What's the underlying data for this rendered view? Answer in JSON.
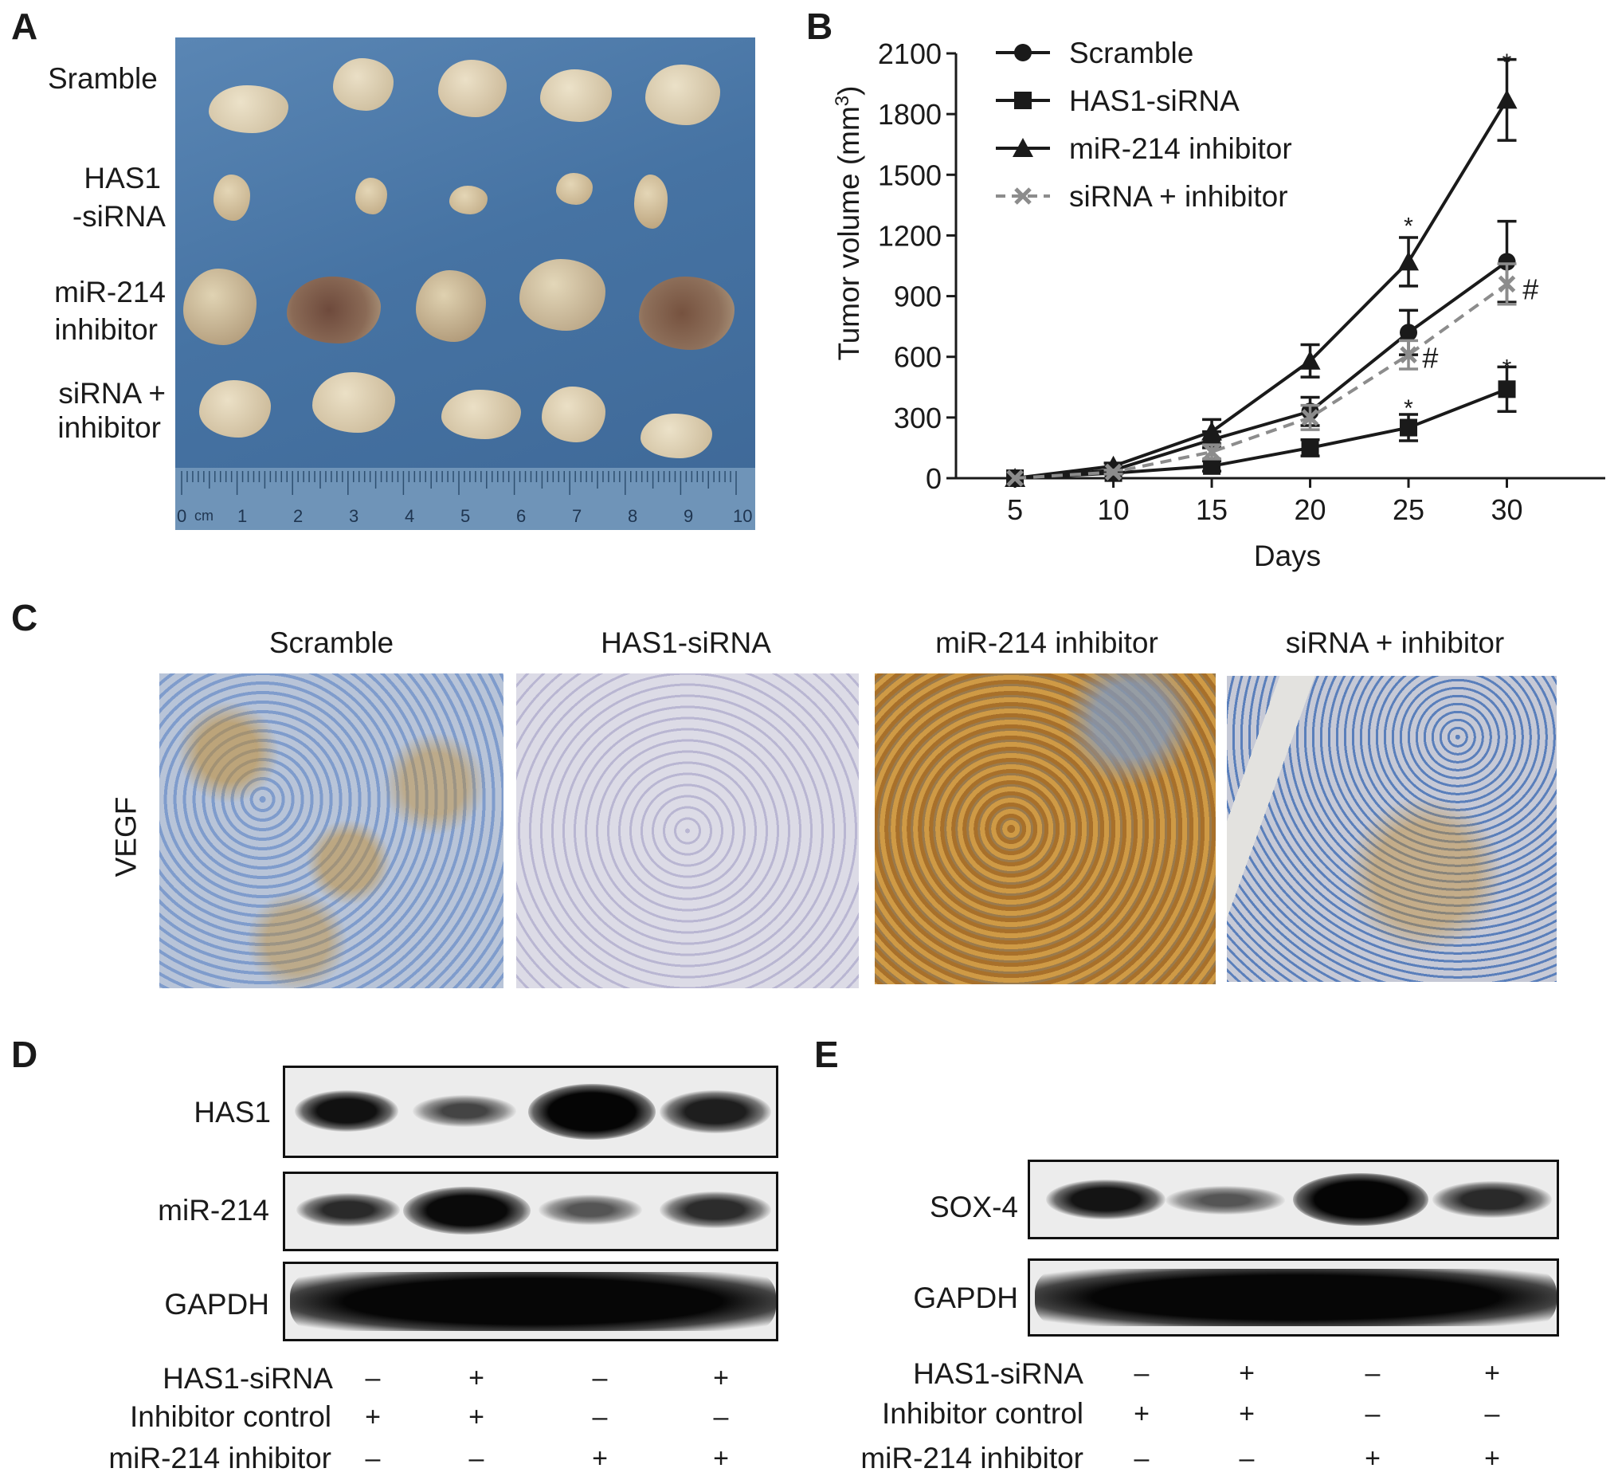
{
  "panels": {
    "a": "A",
    "b": "B",
    "c": "C",
    "d": "D",
    "e": "E"
  },
  "panel_a": {
    "rows": [
      {
        "label": "Sramble"
      },
      {
        "label_line1": "HAS1",
        "label_line2": "-siRNA"
      },
      {
        "label_line1": "miR-214",
        "label_line2": "inhibitor"
      },
      {
        "label_line1": "siRNA +",
        "label_line2": "inhibitor"
      }
    ],
    "ruler": {
      "unit": "cm",
      "ticks": [
        "0",
        "1",
        "2",
        "3",
        "4",
        "5",
        "6",
        "7",
        "8",
        "9",
        "10"
      ]
    },
    "colors": {
      "background": "#4a78a8",
      "tissue": "#d8cdb4"
    }
  },
  "chart_data": {
    "type": "line",
    "xlabel": "Days",
    "ylabel": "Tumor volume (mm³)",
    "ylabel_main": "Tumor volume (mm",
    "ylabel_sup": "3",
    "ylabel_close": ")",
    "x": [
      5,
      10,
      15,
      20,
      25,
      30
    ],
    "xlim": [
      2,
      35
    ],
    "ylim": [
      0,
      2100
    ],
    "yticks": [
      0,
      300,
      600,
      900,
      1200,
      1500,
      1800,
      2100
    ],
    "xticks": [
      5,
      10,
      15,
      20,
      25,
      30
    ],
    "grid": false,
    "legend_position": "top-left",
    "series": [
      {
        "name": "Scramble",
        "marker": "circle",
        "dash": false,
        "color": "#1a1a1a",
        "values": [
          0,
          40,
          190,
          330,
          720,
          1070
        ],
        "errors": [
          0,
          10,
          40,
          70,
          110,
          200
        ]
      },
      {
        "name": "HAS1-siRNA",
        "marker": "square",
        "dash": false,
        "color": "#1a1a1a",
        "values": [
          0,
          25,
          60,
          150,
          250,
          440
        ],
        "errors": [
          0,
          5,
          25,
          40,
          65,
          110
        ]
      },
      {
        "name": "miR-214 inhibitor",
        "marker": "triangle",
        "dash": false,
        "color": "#1a1a1a",
        "values": [
          0,
          60,
          230,
          580,
          1070,
          1870
        ],
        "errors": [
          0,
          15,
          60,
          80,
          120,
          200
        ]
      },
      {
        "name": "siRNA + inhibitor",
        "marker": "x",
        "dash": true,
        "color": "#8c8c8c",
        "values": [
          0,
          30,
          130,
          300,
          610,
          960
        ],
        "errors": [
          0,
          10,
          35,
          60,
          70,
          100
        ]
      }
    ],
    "annotations": [
      {
        "text": "*",
        "x": 25,
        "y": 1270
      },
      {
        "text": "*",
        "x": 30,
        "y": 2080
      },
      {
        "text": "*",
        "x": 25,
        "y": 370
      },
      {
        "text": "*",
        "x": 30,
        "y": 570
      },
      {
        "text": "#",
        "x": 25.7,
        "y": 600
      },
      {
        "text": "#",
        "x": 30.8,
        "y": 940
      }
    ]
  },
  "panel_c": {
    "ylabel": "VEGF",
    "titles": [
      "Scramble",
      "HAS1-siRNA",
      "miR-214 inhibitor",
      "siRNA + inhibitor"
    ],
    "colors": {
      "nuclei": "#5b7fb5",
      "stain": "#c08a2c",
      "pale": "#c9c9d6"
    }
  },
  "panel_d": {
    "blots": [
      "HAS1",
      "miR-214",
      "GAPDH"
    ],
    "conditions": [
      {
        "label": "HAS1-siRNA",
        "signs": [
          "–",
          "+",
          "–",
          "+"
        ]
      },
      {
        "label": "Inhibitor control",
        "signs": [
          "+",
          "+",
          "–",
          "–"
        ]
      },
      {
        "label": "miR-214 inhibitor",
        "signs": [
          "–",
          "–",
          "+",
          "+"
        ]
      }
    ]
  },
  "panel_e": {
    "blots": [
      "SOX-4",
      "GAPDH"
    ],
    "conditions": [
      {
        "label": "HAS1-siRNA",
        "signs": [
          "–",
          "+",
          "–",
          "+"
        ]
      },
      {
        "label": "Inhibitor control",
        "signs": [
          "+",
          "+",
          "–",
          "–"
        ]
      },
      {
        "label": "miR-214 inhibitor",
        "signs": [
          "–",
          "–",
          "+",
          "+"
        ]
      }
    ]
  }
}
